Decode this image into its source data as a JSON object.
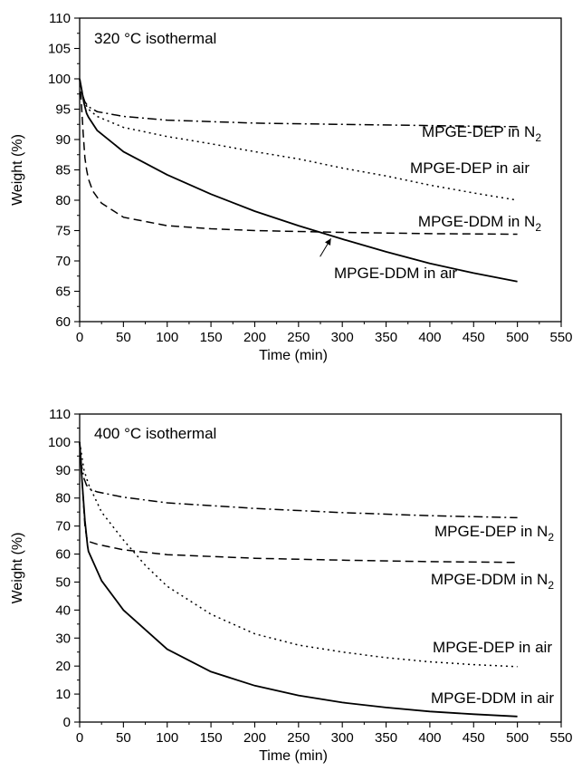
{
  "chart_data": [
    {
      "type": "line",
      "title": "320 °C isothermal",
      "xlabel": "Time (min)",
      "ylabel": "Weight (%)",
      "xlim": [
        0,
        550
      ],
      "ylim": [
        60,
        110
      ],
      "xticks": [
        0,
        50,
        100,
        150,
        200,
        250,
        300,
        350,
        400,
        450,
        500,
        550
      ],
      "yticks": [
        60,
        65,
        70,
        75,
        80,
        85,
        90,
        95,
        100,
        105,
        110
      ],
      "grid": false,
      "series": [
        {
          "name": "MPGE-DEP in N",
          "name_sub": "2",
          "dash": "dashdot",
          "x": [
            0,
            3,
            6,
            10,
            20,
            50,
            100,
            200,
            300,
            400,
            500
          ],
          "y": [
            100,
            97.5,
            96.2,
            95.4,
            94.6,
            93.8,
            93.2,
            92.7,
            92.5,
            92.3,
            92.1
          ]
        },
        {
          "name": "MPGE-DEP in air",
          "dash": "dotted",
          "x": [
            0,
            3,
            6,
            10,
            20,
            50,
            100,
            150,
            200,
            250,
            300,
            350,
            400,
            450,
            500
          ],
          "y": [
            100,
            97.5,
            96.0,
            95.0,
            93.8,
            92.0,
            90.5,
            89.3,
            88.0,
            86.8,
            85.3,
            84.0,
            82.5,
            81.2,
            80.0
          ]
        },
        {
          "name": "MPGE-DDM in N",
          "name_sub": "2",
          "dash": "dashed",
          "x": [
            0,
            2,
            4,
            6,
            8,
            10,
            15,
            25,
            50,
            100,
            150,
            200,
            300,
            400,
            500
          ],
          "y": [
            100,
            96,
            91,
            87,
            85,
            83.5,
            81.5,
            79.5,
            77.2,
            75.8,
            75.3,
            75.0,
            74.7,
            74.5,
            74.4
          ]
        },
        {
          "name": "MPGE-DDM in air",
          "dash": "solid",
          "x": [
            0,
            2,
            5,
            8,
            10,
            20,
            50,
            100,
            150,
            200,
            250,
            300,
            350,
            400,
            450,
            500
          ],
          "y": [
            100,
            98.5,
            96,
            94.3,
            93.7,
            91.5,
            88.0,
            84.2,
            81.0,
            78.2,
            75.8,
            73.6,
            71.5,
            69.6,
            68.0,
            66.6
          ]
        }
      ],
      "annotation_arrow_target": {
        "x": 287,
        "y": 74.0
      }
    },
    {
      "type": "line",
      "title": "400 °C isothermal",
      "xlabel": "Time (min)",
      "ylabel": "Weight (%)",
      "xlim": [
        0,
        550
      ],
      "ylim": [
        0,
        110
      ],
      "xticks": [
        0,
        50,
        100,
        150,
        200,
        250,
        300,
        350,
        400,
        450,
        500,
        550
      ],
      "yticks": [
        0,
        10,
        20,
        30,
        40,
        50,
        60,
        70,
        80,
        90,
        100,
        110
      ],
      "grid": false,
      "series": [
        {
          "name": "MPGE-DEP in N",
          "name_sub": "2",
          "dash": "dashdot",
          "x": [
            0,
            2,
            5,
            8,
            12,
            20,
            50,
            100,
            200,
            300,
            400,
            500
          ],
          "y": [
            100,
            92,
            87,
            84.5,
            83.2,
            82.2,
            80.3,
            78.3,
            76.3,
            74.8,
            73.7,
            73.0
          ]
        },
        {
          "name": "MPGE-DDM in N",
          "name_sub": "2",
          "dash": "dashed",
          "x": [
            0,
            2,
            4,
            6,
            8,
            10,
            20,
            50,
            100,
            200,
            300,
            400,
            500
          ],
          "y": [
            100,
            90,
            80,
            70,
            66,
            64.5,
            63.5,
            61.5,
            59.8,
            58.5,
            57.8,
            57.3,
            57.0
          ]
        },
        {
          "name": "MPGE-DEP in air",
          "dash": "dotted",
          "x": [
            0,
            5,
            10,
            25,
            50,
            75,
            100,
            150,
            200,
            250,
            300,
            350,
            400,
            450,
            500
          ],
          "y": [
            100,
            90,
            85,
            75,
            65,
            56,
            48.5,
            38.5,
            31.5,
            27.5,
            25.0,
            23.0,
            21.5,
            20.5,
            19.8
          ]
        },
        {
          "name": "MPGE-DDM in air",
          "dash": "solid",
          "x": [
            0,
            3,
            6,
            9,
            10,
            25,
            50,
            100,
            150,
            200,
            250,
            300,
            350,
            400,
            450,
            500
          ],
          "y": [
            100,
            85,
            72,
            63,
            61,
            50.5,
            40,
            26,
            18,
            13,
            9.5,
            7.0,
            5.2,
            3.8,
            2.8,
            2.0
          ]
        }
      ]
    }
  ]
}
